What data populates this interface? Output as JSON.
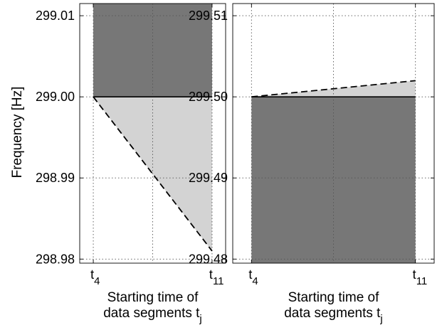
{
  "ylabel": "Frequency [Hz]",
  "chart_data": [
    {
      "type": "area",
      "title": "",
      "xlabel_line1": "Starting time of",
      "xlabel_line2_main": "data segments t",
      "xlabel_line2_sub": "j",
      "xticks": [
        {
          "x": 4,
          "main": "t",
          "sub": "4"
        },
        {
          "x": 11,
          "main": "t",
          "sub": "11"
        }
      ],
      "xlim": [
        3.2,
        11.8
      ],
      "ylim": [
        298.9795,
        299.0115
      ],
      "yticks": [
        {
          "value": 298.98,
          "label": "298.98"
        },
        {
          "value": 298.99,
          "label": "298.99"
        },
        {
          "value": 299.0,
          "label": "299.00"
        },
        {
          "value": 299.01,
          "label": "299.01"
        }
      ],
      "grid": true,
      "dark_region": {
        "x": [
          4,
          11
        ],
        "y": [
          299.0,
          299.0115
        ],
        "color": "#777777"
      },
      "light_region": {
        "x": [
          4,
          11
        ],
        "upper": [
          299.0,
          299.0
        ],
        "lower": [
          299.0,
          298.981
        ],
        "color": "#d3d3d3"
      },
      "solid_line": {
        "x": [
          4,
          11
        ],
        "y": [
          299.0,
          299.0
        ]
      },
      "dashed_line": {
        "x": [
          4,
          11
        ],
        "y": [
          299.0,
          298.981
        ]
      }
    },
    {
      "type": "area",
      "title": "",
      "xlabel_line1": "Starting time of",
      "xlabel_line2_main": "data segments t",
      "xlabel_line2_sub": "j",
      "xticks": [
        {
          "x": 4,
          "main": "t",
          "sub": "4"
        },
        {
          "x": 11,
          "main": "t",
          "sub": "11"
        }
      ],
      "xlim": [
        3.2,
        11.8
      ],
      "ylim": [
        299.4795,
        299.5115
      ],
      "yticks": [
        {
          "value": 299.48,
          "label": "299.48"
        },
        {
          "value": 299.49,
          "label": "299.49"
        },
        {
          "value": 299.5,
          "label": "299.50"
        },
        {
          "value": 299.51,
          "label": "299.51"
        }
      ],
      "grid": true,
      "dark_region": {
        "x": [
          4,
          11
        ],
        "y": [
          299.4795,
          299.5
        ],
        "color": "#777777"
      },
      "light_region": {
        "x": [
          4,
          11
        ],
        "upper": [
          299.5,
          299.502
        ],
        "lower": [
          299.5,
          299.5
        ],
        "color": "#d3d3d3"
      },
      "solid_line": {
        "x": [
          4,
          11
        ],
        "y": [
          299.5,
          299.5
        ]
      },
      "dashed_line": {
        "x": [
          4,
          11
        ],
        "y": [
          299.5,
          299.502
        ]
      }
    }
  ]
}
